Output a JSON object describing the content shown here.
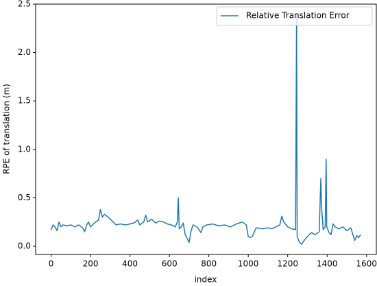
{
  "chart_data": {
    "type": "line",
    "xlabel": "index",
    "ylabel": "RPE of translation (m)",
    "legend": "upper right",
    "grid": false,
    "xlim": [
      -78.5,
      1649.5
    ],
    "ylim": [
      -0.085,
      2.5
    ],
    "xticks": [
      0,
      200,
      400,
      600,
      800,
      1000,
      1200,
      1400,
      1600
    ],
    "yticks": [
      {
        "value": 0,
        "label": "0.0"
      },
      0.5,
      {
        "value": 1,
        "label": "1.0"
      },
      1.5,
      {
        "value": 2,
        "label": "2.0"
      },
      2.5
    ],
    "series": [
      {
        "name": "Relative Translation Error",
        "color": "#1f77b4",
        "x": [
          0,
          10,
          20,
          30,
          40,
          50,
          60,
          80,
          100,
          120,
          140,
          160,
          170,
          180,
          190,
          200,
          220,
          240,
          250,
          260,
          270,
          290,
          310,
          330,
          350,
          380,
          400,
          420,
          440,
          450,
          470,
          480,
          490,
          510,
          530,
          550,
          570,
          590,
          610,
          630,
          640,
          645,
          650,
          660,
          670,
          680,
          690,
          700,
          710,
          720,
          740,
          760,
          770,
          790,
          820,
          850,
          880,
          910,
          940,
          970,
          990,
          1000,
          1010,
          1020,
          1040,
          1070,
          1100,
          1120,
          1140,
          1160,
          1170,
          1180,
          1200,
          1220,
          1240,
          1245,
          1248,
          1260,
          1270,
          1280,
          1300,
          1320,
          1340,
          1360,
          1368,
          1372,
          1380,
          1390,
          1395,
          1398,
          1410,
          1420,
          1430,
          1440,
          1460,
          1480,
          1500,
          1520,
          1540,
          1550,
          1560,
          1570
        ],
        "values": [
          0.17,
          0.22,
          0.2,
          0.16,
          0.25,
          0.2,
          0.22,
          0.21,
          0.22,
          0.2,
          0.22,
          0.19,
          0.15,
          0.22,
          0.25,
          0.2,
          0.24,
          0.27,
          0.38,
          0.3,
          0.33,
          0.3,
          0.26,
          0.22,
          0.23,
          0.22,
          0.23,
          0.24,
          0.27,
          0.22,
          0.25,
          0.32,
          0.25,
          0.28,
          0.24,
          0.26,
          0.25,
          0.23,
          0.22,
          0.2,
          0.25,
          0.5,
          0.18,
          0.2,
          0.24,
          0.12,
          0.08,
          0.04,
          0.16,
          0.22,
          0.2,
          0.14,
          0.2,
          0.22,
          0.23,
          0.21,
          0.22,
          0.2,
          0.23,
          0.25,
          0.22,
          0.1,
          0.09,
          0.1,
          0.19,
          0.18,
          0.19,
          0.18,
          0.2,
          0.22,
          0.31,
          0.25,
          0.2,
          0.18,
          0.17,
          2.4,
          0.1,
          0.04,
          0.02,
          0.05,
          0.1,
          0.14,
          0.12,
          0.15,
          0.7,
          0.4,
          0.17,
          0.2,
          0.9,
          0.2,
          0.14,
          0.12,
          0.23,
          0.2,
          0.18,
          0.2,
          0.16,
          0.19,
          0.06,
          0.11,
          0.09,
          0.12
        ]
      }
    ]
  }
}
